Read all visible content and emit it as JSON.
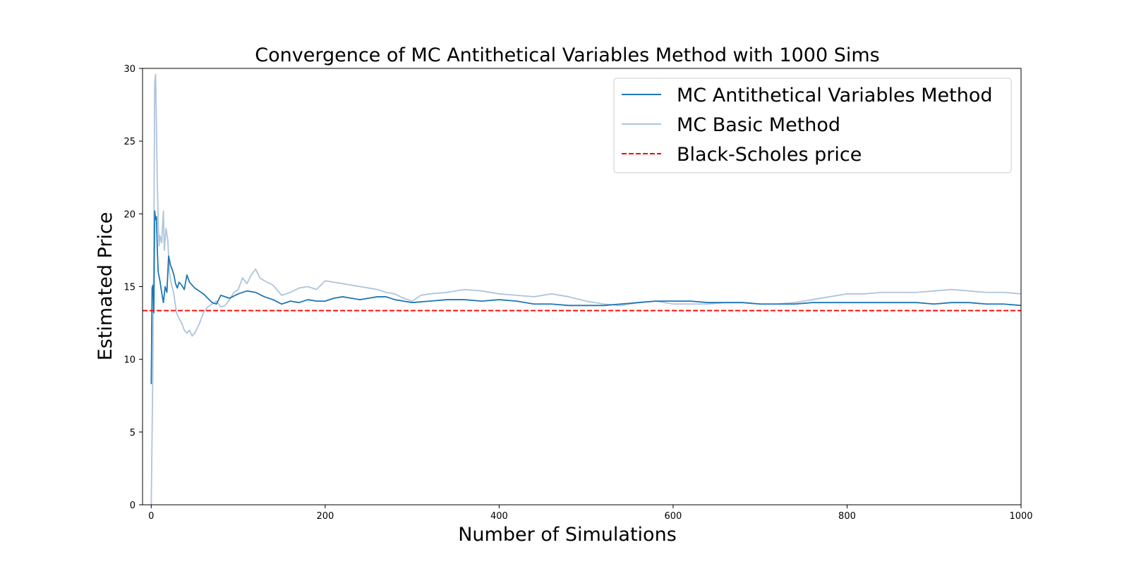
{
  "chart_data": {
    "type": "line",
    "title": "Convergence of MC Antithetical Variables Method with 1000 Sims",
    "xlabel": "Number of Simulations",
    "ylabel": "Estimated Price",
    "xlim": [
      -10,
      1000
    ],
    "ylim": [
      0,
      30
    ],
    "xticks": [
      0,
      200,
      400,
      600,
      800,
      1000
    ],
    "yticks": [
      0,
      5,
      10,
      15,
      20,
      25,
      30
    ],
    "grid": false,
    "legend_position": "upper right",
    "series": [
      {
        "name": "MC Antithetical Variables Method",
        "color": "#1f77b4",
        "style": "solid",
        "x": [
          0,
          1,
          2,
          3,
          4,
          5,
          6,
          7,
          8,
          10,
          12,
          14,
          16,
          18,
          20,
          22,
          24,
          26,
          28,
          30,
          32,
          35,
          38,
          41,
          44,
          47,
          50,
          55,
          60,
          65,
          70,
          75,
          80,
          90,
          100,
          110,
          120,
          130,
          140,
          150,
          160,
          170,
          180,
          190,
          200,
          210,
          220,
          230,
          240,
          250,
          260,
          270,
          280,
          290,
          300,
          320,
          340,
          360,
          380,
          400,
          420,
          440,
          460,
          480,
          500,
          520,
          540,
          560,
          580,
          600,
          620,
          640,
          660,
          680,
          700,
          720,
          740,
          760,
          780,
          800,
          820,
          840,
          860,
          880,
          900,
          920,
          940,
          960,
          980,
          1000
        ],
        "y": [
          8.3,
          14.9,
          15.1,
          13.2,
          20.2,
          19.6,
          19.8,
          17.5,
          16.0,
          15.4,
          14.6,
          13.9,
          15.0,
          14.6,
          17.1,
          16.5,
          16.2,
          15.8,
          15.2,
          14.9,
          15.3,
          15.1,
          14.8,
          15.8,
          15.3,
          15.1,
          14.9,
          14.7,
          14.5,
          14.2,
          13.9,
          13.8,
          14.4,
          14.2,
          14.5,
          14.7,
          14.6,
          14.3,
          14.1,
          13.8,
          14.0,
          13.9,
          14.1,
          14.0,
          14.0,
          14.2,
          14.3,
          14.2,
          14.1,
          14.2,
          14.3,
          14.3,
          14.1,
          14.0,
          13.9,
          14.0,
          14.1,
          14.1,
          14.0,
          14.1,
          14.0,
          13.8,
          13.8,
          13.7,
          13.7,
          13.7,
          13.8,
          13.9,
          14.0,
          14.0,
          14.0,
          13.9,
          13.9,
          13.9,
          13.8,
          13.8,
          13.8,
          13.9,
          13.9,
          13.9,
          13.9,
          13.9,
          13.9,
          13.9,
          13.8,
          13.9,
          13.9,
          13.8,
          13.8,
          13.7
        ]
      },
      {
        "name": "MC Basic Method",
        "color": "#aec4dd",
        "style": "solid",
        "x": [
          0,
          1,
          2,
          3,
          4,
          5,
          6,
          7,
          8,
          9,
          10,
          12,
          14,
          15,
          17,
          19,
          21,
          23,
          26,
          29,
          32,
          35,
          38,
          41,
          44,
          47,
          50,
          55,
          60,
          65,
          70,
          75,
          80,
          85,
          90,
          95,
          100,
          105,
          110,
          115,
          120,
          125,
          130,
          140,
          150,
          160,
          170,
          180,
          190,
          200,
          210,
          220,
          230,
          240,
          250,
          260,
          270,
          280,
          290,
          300,
          310,
          320,
          340,
          360,
          380,
          400,
          420,
          440,
          460,
          480,
          500,
          520,
          540,
          560,
          580,
          600,
          620,
          640,
          660,
          680,
          700,
          720,
          740,
          760,
          780,
          800,
          820,
          840,
          860,
          880,
          900,
          920,
          940,
          960,
          980,
          1000
        ],
        "y": [
          0.0,
          5.0,
          10.2,
          18.0,
          29.0,
          29.6,
          26.0,
          22.0,
          19.5,
          17.8,
          18.5,
          18.0,
          20.2,
          17.5,
          19.0,
          18.2,
          16.0,
          15.2,
          14.5,
          13.2,
          12.8,
          12.5,
          12.0,
          11.8,
          12.0,
          11.6,
          11.8,
          12.4,
          13.2,
          13.6,
          13.8,
          14.0,
          13.6,
          13.7,
          14.1,
          14.6,
          14.8,
          15.6,
          15.2,
          15.8,
          16.2,
          15.6,
          15.4,
          15.1,
          14.4,
          14.6,
          14.9,
          15.0,
          14.8,
          15.4,
          15.3,
          15.2,
          15.1,
          15.0,
          14.9,
          14.8,
          14.6,
          14.5,
          14.2,
          14.0,
          14.4,
          14.5,
          14.6,
          14.8,
          14.7,
          14.5,
          14.4,
          14.3,
          14.5,
          14.3,
          14.0,
          13.8,
          13.7,
          13.9,
          14.0,
          13.8,
          13.8,
          13.8,
          13.9,
          13.9,
          13.8,
          13.8,
          13.9,
          14.1,
          14.3,
          14.5,
          14.5,
          14.6,
          14.6,
          14.6,
          14.7,
          14.8,
          14.7,
          14.6,
          14.6,
          14.5
        ]
      },
      {
        "name": "Black-Scholes price",
        "color": "#ff0000",
        "style": "dashed",
        "x": [
          -10,
          1000
        ],
        "y": [
          13.35,
          13.35
        ]
      }
    ]
  }
}
